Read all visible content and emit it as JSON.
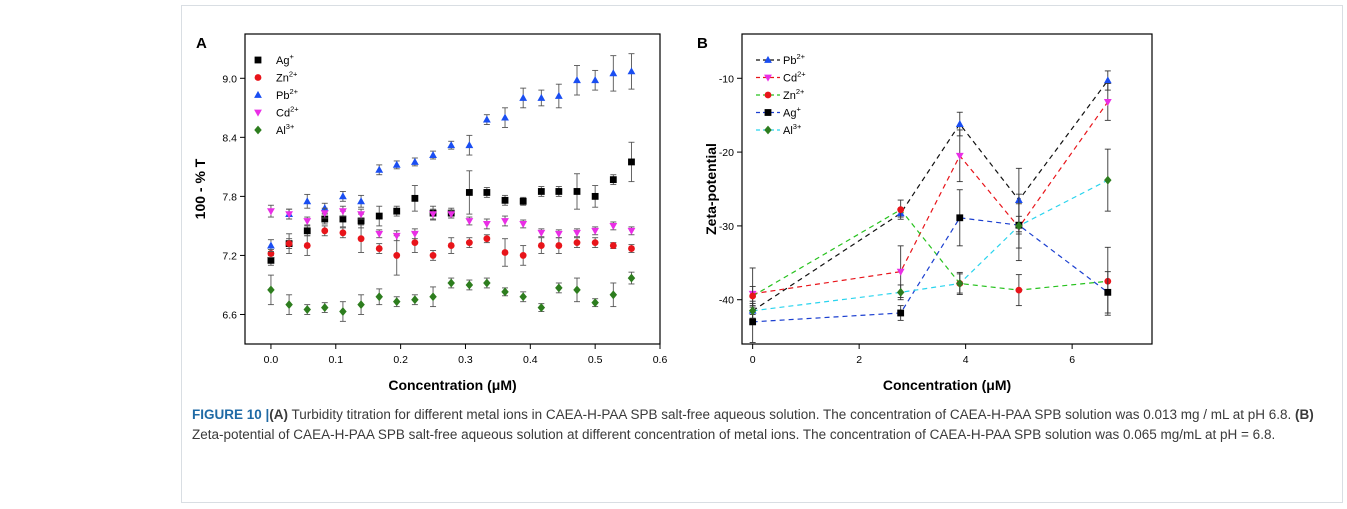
{
  "chart_data": [
    {
      "panel": "A",
      "type": "scatter",
      "xlabel": "Concentration (μM)",
      "ylabel": "100 - % T",
      "xlim": [
        -0.04,
        0.6
      ],
      "ylim": [
        6.3,
        9.45
      ],
      "xticks": [
        0.0,
        0.1,
        0.2,
        0.3,
        0.4,
        0.5,
        0.6
      ],
      "yticks": [
        6.6,
        7.2,
        7.8,
        8.4,
        9.0
      ],
      "legend": "top-left",
      "x": [
        0.0,
        0.028,
        0.056,
        0.083,
        0.111,
        0.139,
        0.167,
        0.194,
        0.222,
        0.25,
        0.278,
        0.306,
        0.333,
        0.361,
        0.389,
        0.417,
        0.444,
        0.472,
        0.5,
        0.528,
        0.556
      ],
      "series": [
        {
          "name": "Ag+",
          "color": "#000000",
          "marker": "square",
          "values": [
            7.15,
            7.32,
            7.45,
            7.57,
            7.57,
            7.55,
            7.6,
            7.65,
            7.78,
            7.63,
            7.63,
            7.84,
            7.84,
            7.76,
            7.75,
            7.85,
            7.85,
            7.85,
            7.8,
            7.97,
            8.15
          ],
          "errors": [
            0.05,
            0.05,
            0.05,
            0.05,
            0.08,
            0.07,
            0.1,
            0.05,
            0.13,
            0.07,
            0.05,
            0.22,
            0.05,
            0.05,
            0.04,
            0.05,
            0.05,
            0.18,
            0.11,
            0.05,
            0.2
          ]
        },
        {
          "name": "Zn2+",
          "color": "#e8141a",
          "marker": "circle",
          "values": [
            7.22,
            7.32,
            7.3,
            7.45,
            7.43,
            7.37,
            7.27,
            7.2,
            7.33,
            7.2,
            7.3,
            7.33,
            7.37,
            7.23,
            7.2,
            7.3,
            7.3,
            7.33,
            7.33,
            7.3,
            7.27
          ],
          "errors": [
            0.04,
            0.1,
            0.1,
            0.05,
            0.05,
            0.14,
            0.05,
            0.2,
            0.1,
            0.05,
            0.08,
            0.05,
            0.04,
            0.14,
            0.1,
            0.08,
            0.08,
            0.05,
            0.05,
            0.03,
            0.04
          ]
        },
        {
          "name": "Pb2+",
          "color": "#1a4ef2",
          "marker": "triangle-up",
          "values": [
            7.3,
            7.62,
            7.75,
            7.68,
            7.8,
            7.75,
            8.07,
            8.12,
            8.15,
            8.22,
            8.32,
            8.32,
            8.58,
            8.6,
            8.8,
            8.8,
            8.82,
            8.98,
            8.98,
            9.05,
            9.07
          ],
          "errors": [
            0.06,
            0.05,
            0.07,
            0.05,
            0.05,
            0.06,
            0.05,
            0.04,
            0.04,
            0.04,
            0.04,
            0.1,
            0.05,
            0.1,
            0.1,
            0.08,
            0.12,
            0.15,
            0.1,
            0.18,
            0.18
          ]
        },
        {
          "name": "Cd2+",
          "color": "#ea2ee6",
          "marker": "triangle-down",
          "values": [
            7.65,
            7.62,
            7.55,
            7.63,
            7.65,
            7.62,
            7.42,
            7.4,
            7.42,
            7.62,
            7.62,
            7.55,
            7.52,
            7.55,
            7.52,
            7.43,
            7.42,
            7.43,
            7.45,
            7.5,
            7.45
          ],
          "errors": [
            0.06,
            0.05,
            0.04,
            0.05,
            0.05,
            0.05,
            0.04,
            0.05,
            0.05,
            0.05,
            0.04,
            0.04,
            0.05,
            0.05,
            0.04,
            0.04,
            0.04,
            0.04,
            0.04,
            0.04,
            0.04
          ]
        },
        {
          "name": "Al3+",
          "color": "#2d7d1e",
          "marker": "diamond",
          "values": [
            6.85,
            6.7,
            6.65,
            6.67,
            6.63,
            6.7,
            6.78,
            6.73,
            6.75,
            6.78,
            6.92,
            6.9,
            6.92,
            6.83,
            6.78,
            6.67,
            6.87,
            6.85,
            6.72,
            6.8,
            6.97
          ],
          "errors": [
            0.15,
            0.1,
            0.05,
            0.05,
            0.1,
            0.1,
            0.08,
            0.05,
            0.05,
            0.1,
            0.05,
            0.05,
            0.05,
            0.04,
            0.05,
            0.04,
            0.05,
            0.12,
            0.04,
            0.12,
            0.06
          ]
        }
      ]
    },
    {
      "panel": "B",
      "type": "line",
      "xlabel": "Concentration (μM)",
      "ylabel": "Zeta-potential",
      "xlim": [
        -0.2,
        7.5
      ],
      "ylim": [
        -46,
        -4
      ],
      "xticks": [
        0,
        2,
        4,
        6
      ],
      "yticks": [
        -10,
        -20,
        -30,
        -40
      ],
      "legend": "top-left",
      "x": [
        0.0,
        2.78,
        3.89,
        5.0,
        6.67
      ],
      "series": [
        {
          "name": "Pb2+",
          "color": "#1a4ef2",
          "marker": "triangle-up",
          "values": [
            -41.5,
            -28.3,
            -16.2,
            -26.5,
            -10.3
          ],
          "errors": [
            0.5,
            0.5,
            1.6,
            4.3,
            1.3
          ]
        },
        {
          "name": "Cd2+",
          "color": "#ea2ee6",
          "marker": "triangle-down",
          "values": [
            -39.2,
            -36.2,
            -20.5,
            -30.2,
            -13.2
          ],
          "errors": [
            3.5,
            3.5,
            3.5,
            4.5,
            2.5
          ]
        },
        {
          "name": "Zn2+",
          "color": "#e8141a",
          "marker": "circle",
          "values": [
            -39.5,
            -27.8,
            -37.8,
            -38.7,
            -37.5
          ],
          "errors": [
            1.3,
            1.3,
            1.3,
            2.1,
            4.6
          ]
        },
        {
          "name": "Ag+",
          "color": "#000000",
          "marker": "square",
          "values": [
            -43.0,
            -41.8,
            -28.9,
            -29.9,
            -39.0
          ],
          "errors": [
            2.8,
            1.0,
            3.8,
            1.2,
            2.8
          ]
        },
        {
          "name": "Al3+",
          "color": "#2d7d1e",
          "marker": "diamond",
          "values": [
            -41.5,
            -39.0,
            -37.8,
            -30.0,
            -23.8
          ],
          "errors": [
            1.0,
            1.0,
            1.5,
            3.0,
            4.2
          ]
        }
      ],
      "connector_colors": [
        "#111111",
        "#e8141a",
        "#27c21e",
        "#1b3fd0",
        "#29d4ee"
      ]
    }
  ],
  "caption": {
    "label": "FIGURE 10 |",
    "a_label": "(A)",
    "a_text": " Turbidity titration for different metal ions in CAEA-H-PAA SPB salt-free aqueous solution. The concentration of CAEA-H-PAA SPB solution was 0.013 mg / mL at pH 6.8. ",
    "b_label": "(B)",
    "b_text": " Zeta-potential of CAEA-H-PAA SPB salt-free aqueous solution at different concentration of metal ions. The concentration of CAEA-H-PAA SPB solution was 0.065 mg/mL at pH = 6.8."
  },
  "legend_text": {
    "A": [
      {
        "base": "Ag",
        "sup": "+"
      },
      {
        "base": "Zn",
        "sup": "2+"
      },
      {
        "base": "Pb",
        "sup": "2+"
      },
      {
        "base": "Cd",
        "sup": "2+"
      },
      {
        "base": "Al",
        "sup": "3+"
      }
    ],
    "B": [
      {
        "base": "Pb",
        "sup": "2+"
      },
      {
        "base": "Cd",
        "sup": "2+"
      },
      {
        "base": "Zn",
        "sup": "2+"
      },
      {
        "base": "Ag",
        "sup": "+"
      },
      {
        "base": "Al",
        "sup": "3+"
      }
    ]
  }
}
